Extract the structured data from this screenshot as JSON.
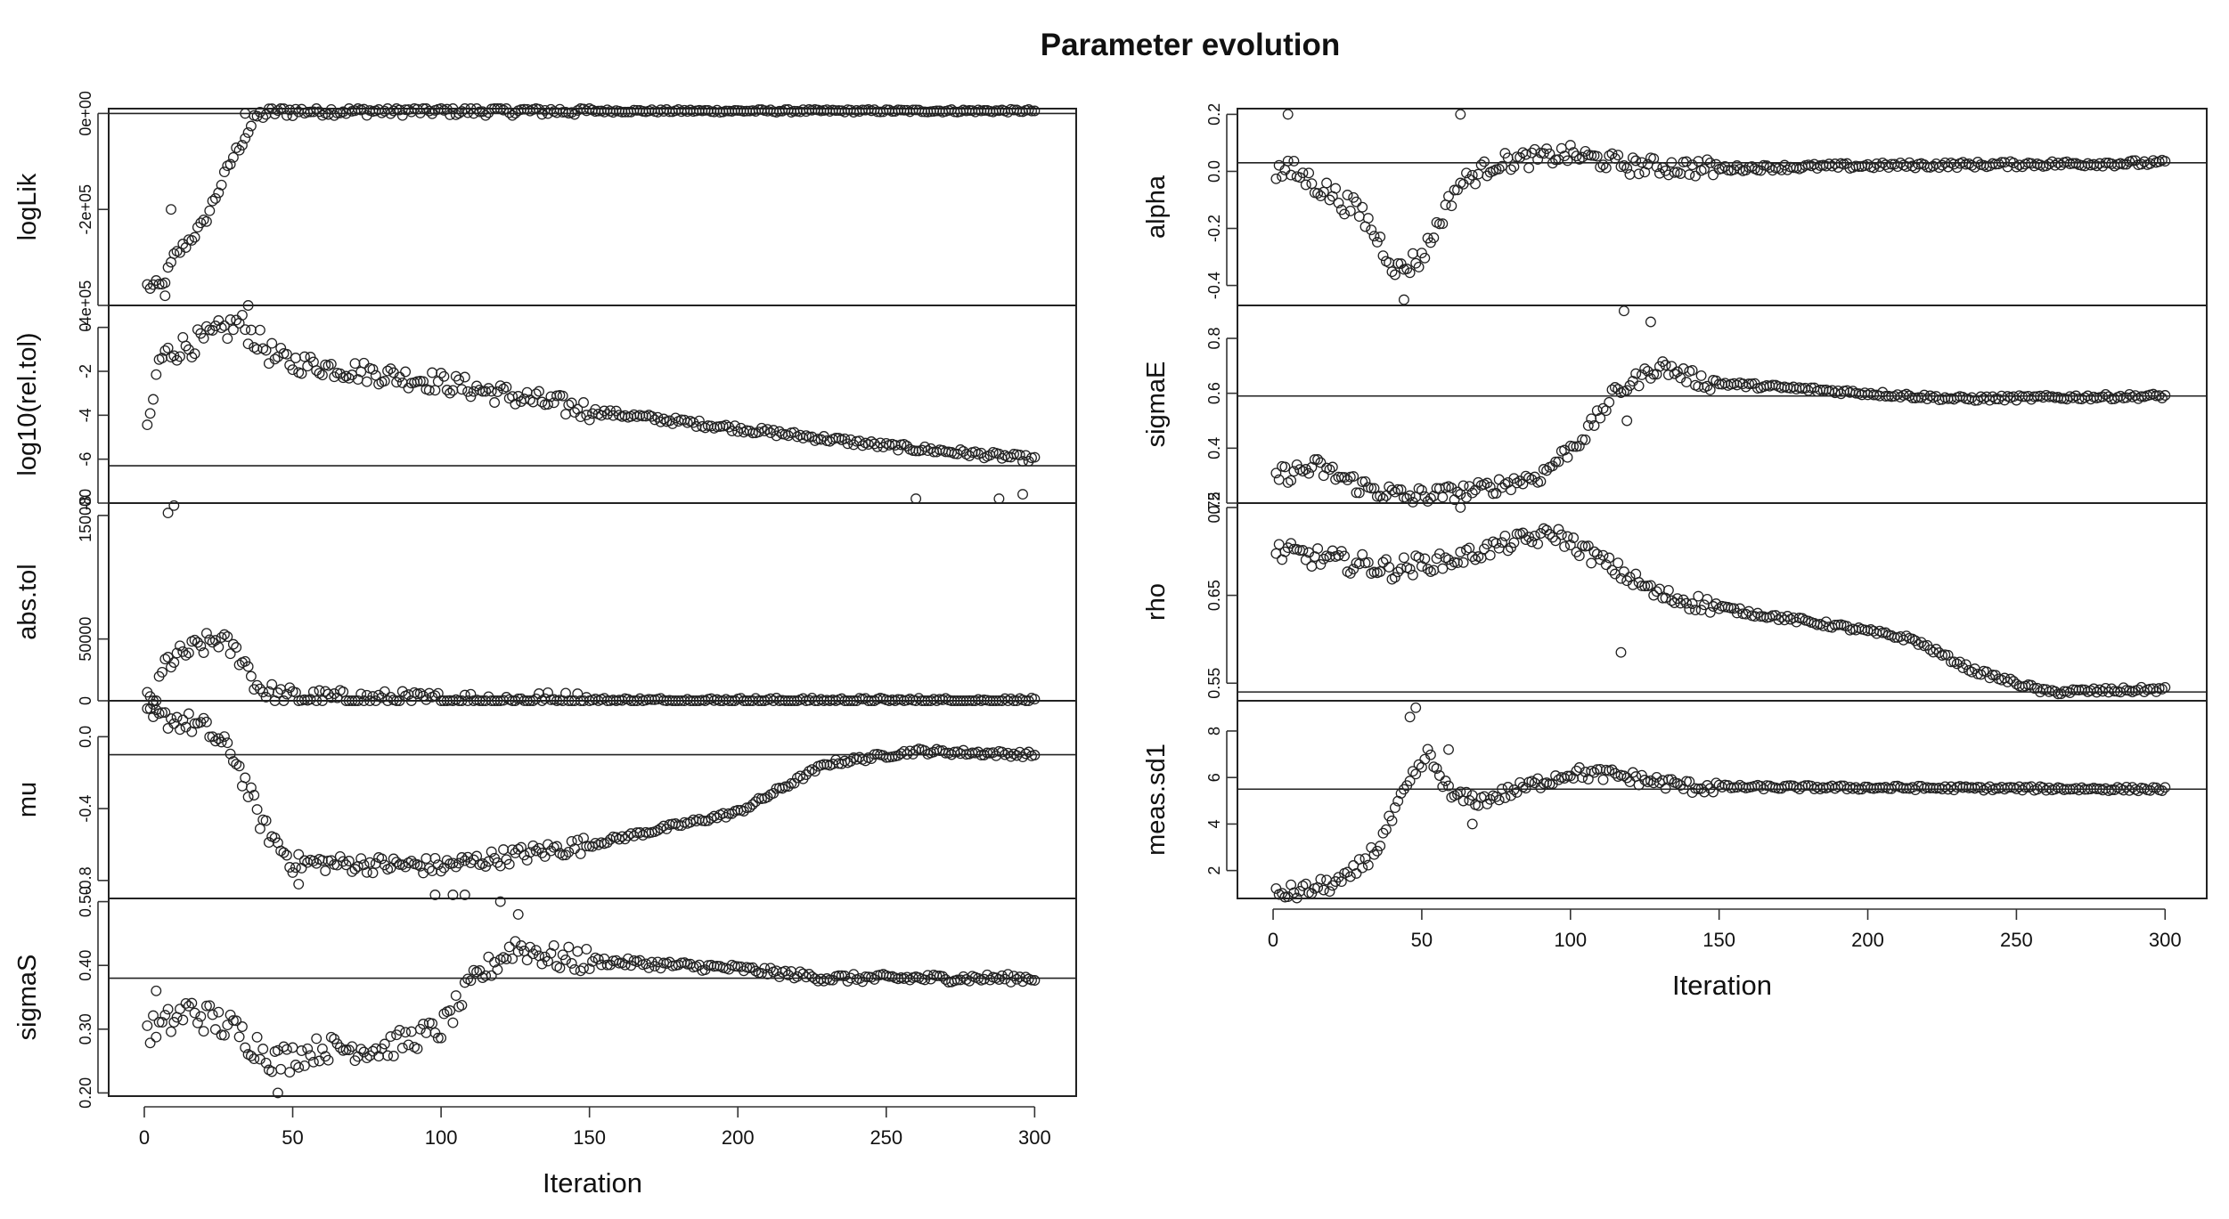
{
  "title": "Parameter evolution",
  "colors": {
    "points": "#222222",
    "axes": "#222222",
    "background": "#ffffff"
  },
  "columns": [
    {
      "name": "left",
      "xlabel": "Iteration",
      "xticks": [
        "0",
        "50",
        "100",
        "150",
        "200",
        "250",
        "300"
      ]
    },
    {
      "name": "right",
      "xlabel": "Iteration",
      "xticks": [
        "0",
        "50",
        "100",
        "150",
        "200",
        "250",
        "300"
      ]
    }
  ],
  "chart_data": [
    {
      "type": "scatter",
      "column": "left",
      "row": 0,
      "ylabel": "logLik",
      "ylim": [
        -400000,
        10000
      ],
      "yticks": [
        {
          "value": 0,
          "label": "0e+00"
        },
        {
          "value": -200000,
          "label": "-2e+05"
        },
        {
          "value": -400000,
          "label": "-4e+05"
        }
      ],
      "refline": 0,
      "xlim": [
        -12,
        314
      ],
      "curve": [
        [
          1,
          -360000
        ],
        [
          6,
          -360000
        ],
        [
          10,
          -300000
        ],
        [
          20,
          -230000
        ],
        [
          30,
          -90000
        ],
        [
          38,
          -5000
        ],
        [
          45,
          5000
        ],
        [
          300,
          5500
        ]
      ],
      "noise": 12000,
      "extras": [
        [
          7,
          -380000
        ],
        [
          9,
          -200000
        ],
        [
          34,
          0
        ]
      ]
    },
    {
      "type": "scatter",
      "column": "left",
      "row": 1,
      "ylabel": "log10(rel.tol)",
      "ylim": [
        -8,
        1
      ],
      "yticks": [
        {
          "value": 0,
          "label": "0"
        },
        {
          "value": -2,
          "label": "-2"
        },
        {
          "value": -4,
          "label": "-4"
        },
        {
          "value": -6,
          "label": "-6"
        },
        {
          "value": -8,
          "label": "-8"
        }
      ],
      "refline": -6.3,
      "xlim": [
        -12,
        314
      ],
      "curve": [
        [
          1,
          -5
        ],
        [
          5,
          -1.5
        ],
        [
          10,
          -1
        ],
        [
          20,
          -0.6
        ],
        [
          32,
          0.2
        ],
        [
          45,
          -1.5
        ],
        [
          100,
          -2.5
        ],
        [
          150,
          -3.8
        ],
        [
          200,
          -4.6
        ],
        [
          250,
          -5.4
        ],
        [
          300,
          -6
        ]
      ],
      "noise": 0.6,
      "extras": [
        [
          35,
          1.2
        ],
        [
          260,
          -7.8
        ],
        [
          288,
          -7.8
        ],
        [
          296,
          -7.6
        ]
      ]
    },
    {
      "type": "scatter",
      "column": "left",
      "row": 2,
      "ylabel": "abs.tol",
      "ylim": [
        0,
        160000
      ],
      "yticks": [
        {
          "value": 0,
          "label": "0"
        },
        {
          "value": 50000,
          "label": "50000"
        },
        {
          "value": 150000,
          "label": "150000"
        }
      ],
      "refline": 0,
      "xlim": [
        -12,
        314
      ],
      "curve": [
        [
          1,
          0
        ],
        [
          4,
          2000
        ],
        [
          7,
          30000
        ],
        [
          15,
          40000
        ],
        [
          25,
          50000
        ],
        [
          33,
          35000
        ],
        [
          38,
          12000
        ],
        [
          45,
          3000
        ],
        [
          70,
          1500
        ],
        [
          100,
          300
        ],
        [
          300,
          0
        ]
      ],
      "noise": 9000,
      "extras": [
        [
          8,
          152000
        ],
        [
          10,
          158000
        ]
      ]
    },
    {
      "type": "scatter",
      "column": "left",
      "row": 3,
      "ylabel": "mu",
      "ylim": [
        -0.9,
        0.2
      ],
      "yticks": [
        {
          "value": 0,
          "label": "0.0"
        },
        {
          "value": -0.4,
          "label": "-0.4"
        },
        {
          "value": -0.8,
          "label": "-0.8"
        }
      ],
      "refline": -0.1,
      "xlim": [
        -12,
        314
      ],
      "curve": [
        [
          1,
          0.1
        ],
        [
          10,
          0.1
        ],
        [
          20,
          0.05
        ],
        [
          30,
          -0.1
        ],
        [
          40,
          -0.5
        ],
        [
          50,
          -0.7
        ],
        [
          100,
          -0.72
        ],
        [
          150,
          -0.6
        ],
        [
          200,
          -0.42
        ],
        [
          230,
          -0.15
        ],
        [
          260,
          -0.08
        ],
        [
          300,
          -0.1
        ]
      ],
      "noise": 0.06,
      "extras": [
        [
          3,
          0.18
        ],
        [
          52,
          -0.82
        ],
        [
          98,
          -0.88
        ],
        [
          104,
          -0.88
        ],
        [
          108,
          -0.88
        ]
      ]
    },
    {
      "type": "scatter",
      "column": "left",
      "row": 4,
      "ylabel": "sigmaS",
      "ylim": [
        0.195,
        0.505
      ],
      "yticks": [
        {
          "value": 0.2,
          "label": "0.20"
        },
        {
          "value": 0.3,
          "label": "0.30"
        },
        {
          "value": 0.4,
          "label": "0.40"
        },
        {
          "value": 0.5,
          "label": "0.50"
        }
      ],
      "refline": 0.38,
      "xlim": [
        -12,
        314
      ],
      "curve": [
        [
          1,
          0.3
        ],
        [
          5,
          0.3
        ],
        [
          15,
          0.33
        ],
        [
          30,
          0.3
        ],
        [
          45,
          0.25
        ],
        [
          60,
          0.27
        ],
        [
          80,
          0.27
        ],
        [
          100,
          0.3
        ],
        [
          112,
          0.38
        ],
        [
          125,
          0.43
        ],
        [
          140,
          0.41
        ],
        [
          200,
          0.395
        ],
        [
          230,
          0.38
        ],
        [
          300,
          0.38
        ]
      ],
      "noise": 0.025,
      "extras": [
        [
          4,
          0.36
        ],
        [
          45,
          0.2
        ],
        [
          120,
          0.5
        ],
        [
          126,
          0.48
        ]
      ]
    },
    {
      "type": "scatter",
      "column": "right",
      "row": 0,
      "ylabel": "alpha",
      "ylim": [
        -0.47,
        0.22
      ],
      "yticks": [
        {
          "value": 0.2,
          "label": "0.2"
        },
        {
          "value": 0,
          "label": "0.0"
        },
        {
          "value": -0.2,
          "label": "-0.2"
        },
        {
          "value": -0.4,
          "label": "-0.4"
        }
      ],
      "refline": 0.03,
      "xlim": [
        -12,
        314
      ],
      "curve": [
        [
          1,
          0
        ],
        [
          7,
          0
        ],
        [
          15,
          -0.05
        ],
        [
          30,
          -0.15
        ],
        [
          42,
          -0.35
        ],
        [
          50,
          -0.3
        ],
        [
          62,
          -0.05
        ],
        [
          75,
          0.03
        ],
        [
          100,
          0.06
        ],
        [
          120,
          0.02
        ],
        [
          150,
          0.01
        ],
        [
          200,
          0.02
        ],
        [
          300,
          0.03
        ]
      ],
      "noise": 0.04,
      "extras": [
        [
          5,
          0.2
        ],
        [
          63,
          0.2
        ],
        [
          44,
          -0.45
        ]
      ]
    },
    {
      "type": "scatter",
      "column": "right",
      "row": 1,
      "ylabel": "sigmaE",
      "ylim": [
        0.2,
        0.92
      ],
      "yticks": [
        {
          "value": 0.2,
          "label": "0.2"
        },
        {
          "value": 0.4,
          "label": "0.4"
        },
        {
          "value": 0.6,
          "label": "0.6"
        },
        {
          "value": 0.8,
          "label": "0.8"
        }
      ],
      "refline": 0.59,
      "xlim": [
        -12,
        314
      ],
      "curve": [
        [
          1,
          0.3
        ],
        [
          15,
          0.33
        ],
        [
          30,
          0.26
        ],
        [
          45,
          0.22
        ],
        [
          70,
          0.25
        ],
        [
          90,
          0.3
        ],
        [
          105,
          0.45
        ],
        [
          115,
          0.6
        ],
        [
          130,
          0.7
        ],
        [
          145,
          0.64
        ],
        [
          200,
          0.6
        ],
        [
          230,
          0.58
        ],
        [
          300,
          0.59
        ]
      ],
      "noise": 0.035,
      "extras": [
        [
          118,
          0.9
        ],
        [
          119,
          0.5
        ],
        [
          127,
          0.86
        ]
      ]
    },
    {
      "type": "scatter",
      "column": "right",
      "row": 2,
      "ylabel": "rho",
      "ylim": [
        0.53,
        0.755
      ],
      "yticks": [
        {
          "value": 0.55,
          "label": "0.55"
        },
        {
          "value": 0.65,
          "label": "0.65"
        },
        {
          "value": 0.75,
          "label": "0.75"
        }
      ],
      "refline": 0.54,
      "xlim": [
        -12,
        314
      ],
      "curve": [
        [
          1,
          0.7
        ],
        [
          20,
          0.69
        ],
        [
          40,
          0.68
        ],
        [
          60,
          0.69
        ],
        [
          80,
          0.71
        ],
        [
          95,
          0.72
        ],
        [
          110,
          0.69
        ],
        [
          130,
          0.65
        ],
        [
          160,
          0.63
        ],
        [
          190,
          0.615
        ],
        [
          215,
          0.6
        ],
        [
          235,
          0.565
        ],
        [
          260,
          0.54
        ],
        [
          300,
          0.543
        ]
      ],
      "noise": 0.012,
      "extras": [
        [
          63,
          0.75
        ],
        [
          117,
          0.585
        ]
      ]
    },
    {
      "type": "scatter",
      "column": "right",
      "row": 3,
      "ylabel": "meas.sd1",
      "ylim": [
        0.8,
        9.3
      ],
      "yticks": [
        {
          "value": 2,
          "label": "2"
        },
        {
          "value": 4,
          "label": "4"
        },
        {
          "value": 6,
          "label": "6"
        },
        {
          "value": 8,
          "label": "8"
        }
      ],
      "refline": 5.5,
      "xlim": [
        -12,
        314
      ],
      "curve": [
        [
          1,
          1
        ],
        [
          10,
          1.1
        ],
        [
          25,
          1.6
        ],
        [
          35,
          3
        ],
        [
          45,
          5.5
        ],
        [
          52,
          7
        ],
        [
          60,
          5.2
        ],
        [
          70,
          5
        ],
        [
          90,
          5.8
        ],
        [
          100,
          6.2
        ],
        [
          115,
          6.1
        ],
        [
          140,
          5.6
        ],
        [
          300,
          5.5
        ]
      ],
      "noise": 0.35,
      "extras": [
        [
          46,
          8.6
        ],
        [
          48,
          9
        ],
        [
          59,
          7.2
        ],
        [
          67,
          4
        ]
      ]
    }
  ]
}
